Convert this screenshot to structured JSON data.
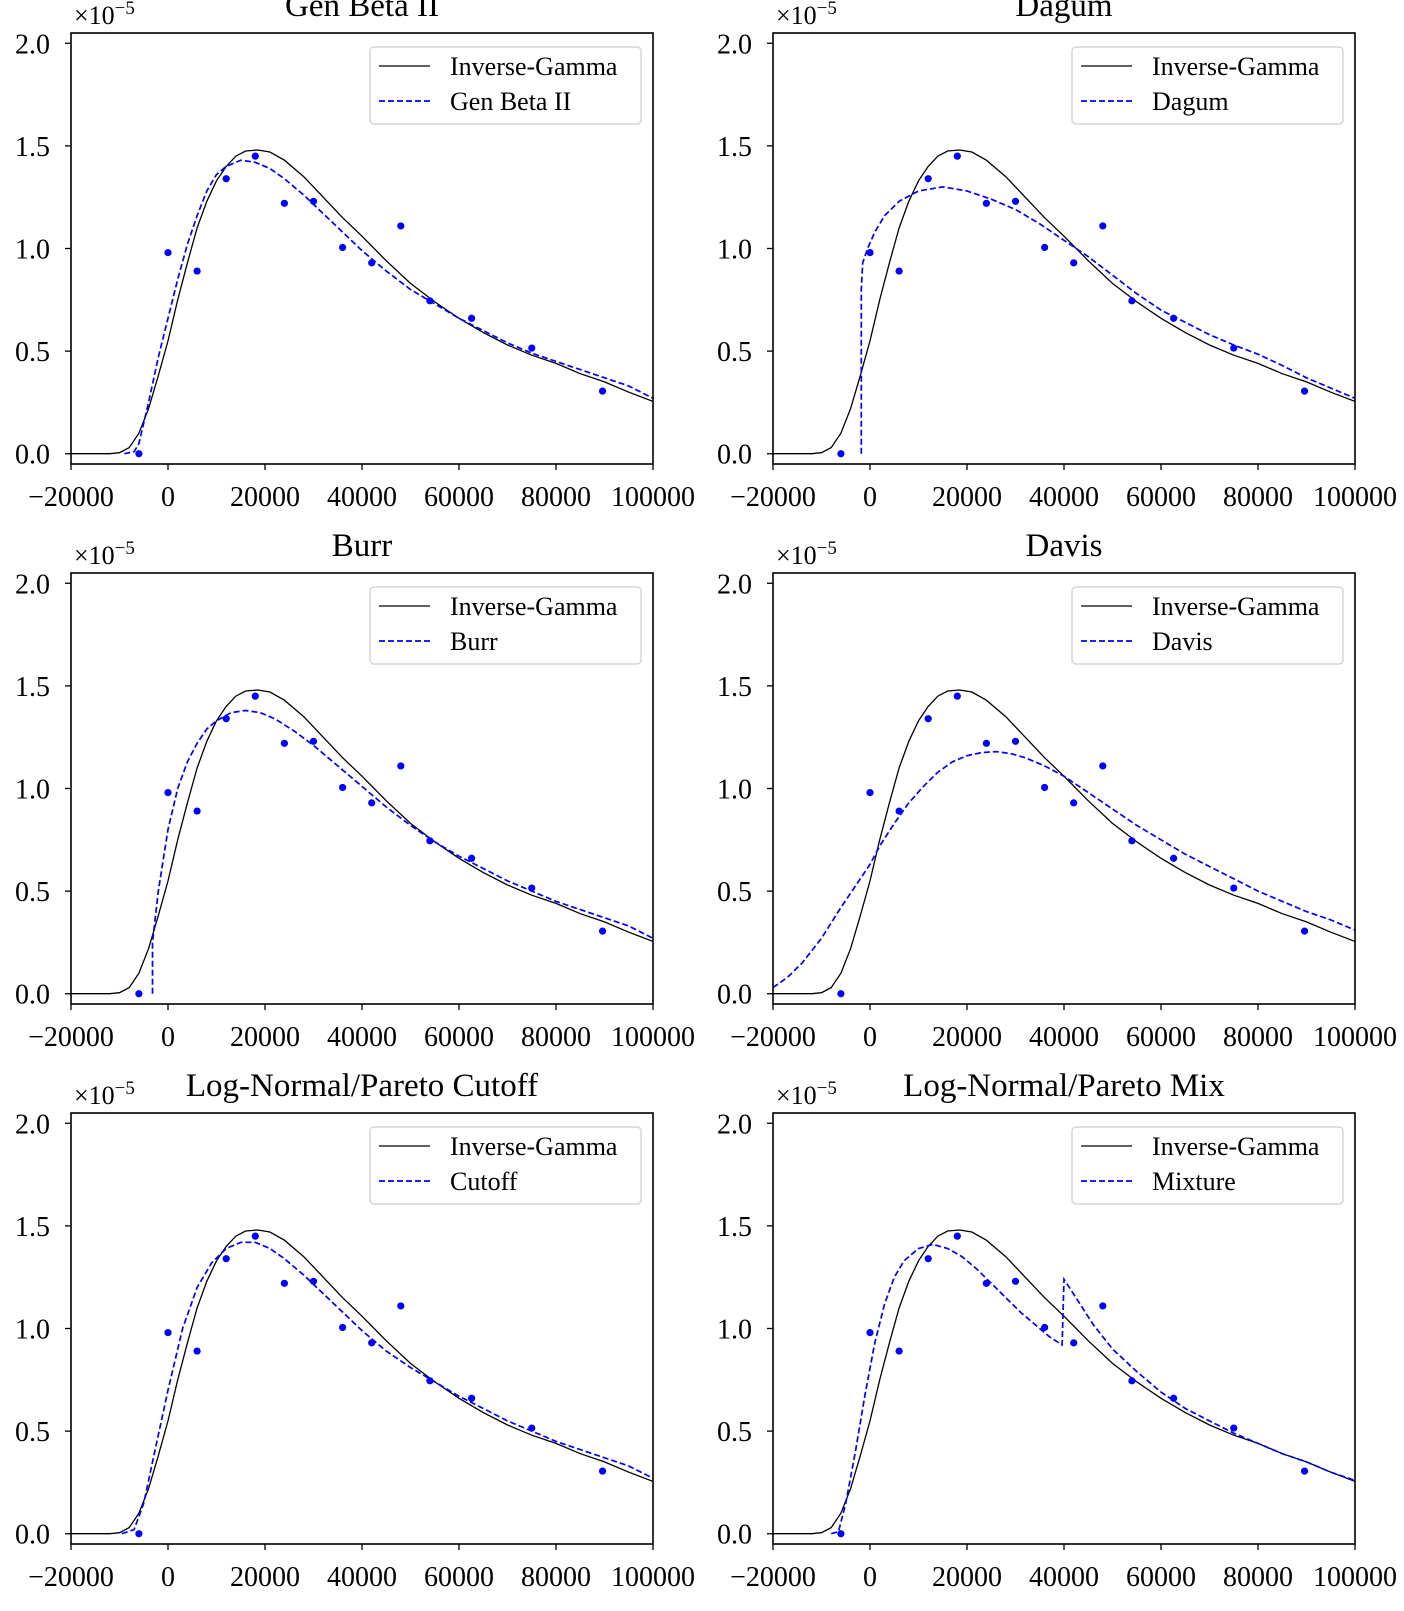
{
  "chart_data": {
    "type": "line",
    "layout": "3 rows x 2 columns",
    "xlim": [
      -20000,
      100000
    ],
    "ylim": [
      -0.05,
      2.05
    ],
    "y_scale_label": "×10",
    "y_scale_exponent": "−5",
    "x_ticks": [
      -20000,
      0,
      20000,
      40000,
      60000,
      80000,
      100000
    ],
    "x_tick_labels": [
      "−20000",
      "0",
      "20000",
      "40000",
      "60000",
      "80000",
      "100000"
    ],
    "y_ticks": [
      0,
      0.5,
      1.0,
      1.5,
      2.0
    ],
    "y_tick_labels": [
      "0.0",
      "0.5",
      "1.0",
      "1.5",
      "2.0"
    ],
    "colors": {
      "reference": "#000000",
      "fit": "#0000ff",
      "points": "#0000ff"
    },
    "legend_placement": "upper right",
    "reference_series": {
      "name": "Inverse-Gamma",
      "points": [
        [
          -20000,
          0
        ],
        [
          -12000,
          0
        ],
        [
          -10000,
          0.005
        ],
        [
          -8000,
          0.03
        ],
        [
          -6000,
          0.1
        ],
        [
          -4000,
          0.22
        ],
        [
          -2000,
          0.38
        ],
        [
          0,
          0.55
        ],
        [
          2000,
          0.75
        ],
        [
          4000,
          0.93
        ],
        [
          6000,
          1.1
        ],
        [
          8000,
          1.23
        ],
        [
          10000,
          1.33
        ],
        [
          12000,
          1.4
        ],
        [
          14000,
          1.45
        ],
        [
          16000,
          1.475
        ],
        [
          18500,
          1.48
        ],
        [
          21000,
          1.47
        ],
        [
          24000,
          1.43
        ],
        [
          28000,
          1.35
        ],
        [
          30000,
          1.3
        ],
        [
          32000,
          1.25
        ],
        [
          36000,
          1.15
        ],
        [
          40000,
          1.06
        ],
        [
          45000,
          0.94
        ],
        [
          50000,
          0.83
        ],
        [
          55000,
          0.74
        ],
        [
          60000,
          0.66
        ],
        [
          65000,
          0.59
        ],
        [
          70000,
          0.53
        ],
        [
          75000,
          0.48
        ],
        [
          80000,
          0.44
        ],
        [
          85000,
          0.39
        ],
        [
          90000,
          0.35
        ],
        [
          95000,
          0.3
        ],
        [
          100000,
          0.255
        ]
      ]
    },
    "scatter": {
      "x": [
        -6000,
        0,
        6000,
        12000,
        18000,
        24000,
        30000,
        36000,
        42000,
        48000,
        54000,
        62600,
        75000,
        89600
      ],
      "y": [
        0.0,
        0.98,
        0.89,
        1.34,
        1.45,
        1.22,
        1.23,
        1.005,
        0.93,
        1.11,
        0.745,
        0.66,
        0.515,
        0.305
      ]
    },
    "panels": [
      {
        "title": "Gen Beta II",
        "legend": [
          "Inverse-Gamma",
          "Gen Beta II"
        ],
        "fit": [
          [
            -9000,
            0
          ],
          [
            -7000,
            0.01
          ],
          [
            -6000,
            0.05
          ],
          [
            -4000,
            0.25
          ],
          [
            -2000,
            0.47
          ],
          [
            0,
            0.66
          ],
          [
            2000,
            0.85
          ],
          [
            4000,
            1.02
          ],
          [
            6000,
            1.16
          ],
          [
            8000,
            1.28
          ],
          [
            10000,
            1.36
          ],
          [
            12000,
            1.4
          ],
          [
            15000,
            1.43
          ],
          [
            18000,
            1.42
          ],
          [
            21000,
            1.39
          ],
          [
            24000,
            1.34
          ],
          [
            28000,
            1.26
          ],
          [
            32000,
            1.17
          ],
          [
            36000,
            1.08
          ],
          [
            40000,
            0.99
          ],
          [
            45000,
            0.89
          ],
          [
            50000,
            0.8
          ],
          [
            55000,
            0.73
          ],
          [
            60000,
            0.66
          ],
          [
            65000,
            0.6
          ],
          [
            70000,
            0.54
          ],
          [
            75000,
            0.49
          ],
          [
            80000,
            0.45
          ],
          [
            85000,
            0.41
          ],
          [
            90000,
            0.37
          ],
          [
            95000,
            0.33
          ],
          [
            100000,
            0.27
          ]
        ]
      },
      {
        "title": "Dagum",
        "legend": [
          "Inverse-Gamma",
          "Dagum"
        ],
        "fit": [
          [
            -1800,
            0
          ],
          [
            -1800,
            0.8
          ],
          [
            -1500,
            0.93
          ],
          [
            -500,
            1.0
          ],
          [
            1000,
            1.08
          ],
          [
            3000,
            1.16
          ],
          [
            6000,
            1.23
          ],
          [
            10000,
            1.28
          ],
          [
            15000,
            1.3
          ],
          [
            20000,
            1.28
          ],
          [
            25000,
            1.24
          ],
          [
            30000,
            1.19
          ],
          [
            35000,
            1.12
          ],
          [
            40000,
            1.04
          ],
          [
            45000,
            0.96
          ],
          [
            50000,
            0.87
          ],
          [
            55000,
            0.78
          ],
          [
            60000,
            0.7
          ],
          [
            65000,
            0.64
          ],
          [
            70000,
            0.58
          ],
          [
            75000,
            0.53
          ],
          [
            80000,
            0.485
          ],
          [
            85000,
            0.43
          ],
          [
            90000,
            0.37
          ],
          [
            95000,
            0.32
          ],
          [
            100000,
            0.27
          ]
        ]
      },
      {
        "title": "Burr",
        "legend": [
          "Inverse-Gamma",
          "Burr"
        ],
        "fit": [
          [
            -3200,
            0
          ],
          [
            -3200,
            0.25
          ],
          [
            -2000,
            0.5
          ],
          [
            0,
            0.8
          ],
          [
            2000,
            1.0
          ],
          [
            4000,
            1.13
          ],
          [
            6000,
            1.22
          ],
          [
            8000,
            1.29
          ],
          [
            10000,
            1.33
          ],
          [
            13000,
            1.37
          ],
          [
            16000,
            1.38
          ],
          [
            19000,
            1.37
          ],
          [
            22000,
            1.34
          ],
          [
            26000,
            1.28
          ],
          [
            30000,
            1.21
          ],
          [
            35000,
            1.11
          ],
          [
            40000,
            1.01
          ],
          [
            45000,
            0.91
          ],
          [
            50000,
            0.82
          ],
          [
            55000,
            0.74
          ],
          [
            60000,
            0.67
          ],
          [
            65000,
            0.61
          ],
          [
            70000,
            0.55
          ],
          [
            75000,
            0.5
          ],
          [
            80000,
            0.45
          ],
          [
            85000,
            0.41
          ],
          [
            90000,
            0.37
          ],
          [
            95000,
            0.33
          ],
          [
            100000,
            0.27
          ]
        ]
      },
      {
        "title": "Davis",
        "legend": [
          "Inverse-Gamma",
          "Davis"
        ],
        "fit": [
          [
            -20000,
            0.03
          ],
          [
            -17000,
            0.08
          ],
          [
            -14000,
            0.15
          ],
          [
            -10000,
            0.27
          ],
          [
            -6000,
            0.42
          ],
          [
            -2000,
            0.56
          ],
          [
            0,
            0.63
          ],
          [
            2000,
            0.72
          ],
          [
            5000,
            0.83
          ],
          [
            8000,
            0.93
          ],
          [
            11000,
            1.01
          ],
          [
            14000,
            1.08
          ],
          [
            17000,
            1.13
          ],
          [
            20000,
            1.16
          ],
          [
            23000,
            1.175
          ],
          [
            26000,
            1.18
          ],
          [
            29000,
            1.17
          ],
          [
            32000,
            1.15
          ],
          [
            36000,
            1.11
          ],
          [
            40000,
            1.06
          ],
          [
            45000,
            0.98
          ],
          [
            50000,
            0.9
          ],
          [
            55000,
            0.82
          ],
          [
            60000,
            0.75
          ],
          [
            65000,
            0.68
          ],
          [
            70000,
            0.62
          ],
          [
            75000,
            0.56
          ],
          [
            80000,
            0.5
          ],
          [
            85000,
            0.45
          ],
          [
            90000,
            0.4
          ],
          [
            95000,
            0.36
          ],
          [
            100000,
            0.31
          ]
        ]
      },
      {
        "title": "Log-Normal/Pareto Cutoff",
        "legend": [
          "Inverse-Gamma",
          "Cutoff"
        ],
        "fit": [
          [
            -9500,
            0
          ],
          [
            -7000,
            0.02
          ],
          [
            -5000,
            0.15
          ],
          [
            -3000,
            0.37
          ],
          [
            0,
            0.7
          ],
          [
            3000,
            1.0
          ],
          [
            6000,
            1.2
          ],
          [
            9000,
            1.32
          ],
          [
            12000,
            1.39
          ],
          [
            15000,
            1.42
          ],
          [
            18000,
            1.42
          ],
          [
            21000,
            1.39
          ],
          [
            24000,
            1.34
          ],
          [
            28000,
            1.26
          ],
          [
            32000,
            1.17
          ],
          [
            36000,
            1.08
          ],
          [
            40000,
            0.99
          ],
          [
            45000,
            0.89
          ],
          [
            50000,
            0.81
          ],
          [
            55000,
            0.74
          ],
          [
            60000,
            0.67
          ],
          [
            65000,
            0.61
          ],
          [
            70000,
            0.55
          ],
          [
            75000,
            0.5
          ],
          [
            80000,
            0.45
          ],
          [
            85000,
            0.41
          ],
          [
            90000,
            0.37
          ],
          [
            95000,
            0.33
          ],
          [
            100000,
            0.27
          ]
        ]
      },
      {
        "title": "Log-Normal/Pareto Mix",
        "legend": [
          "Inverse-Gamma",
          "Mixture"
        ],
        "fit": [
          [
            -8000,
            0
          ],
          [
            -6500,
            0.01
          ],
          [
            -5000,
            0.15
          ],
          [
            -3000,
            0.4
          ],
          [
            -1000,
            0.68
          ],
          [
            1000,
            0.93
          ],
          [
            3000,
            1.12
          ],
          [
            5000,
            1.25
          ],
          [
            7000,
            1.33
          ],
          [
            10000,
            1.39
          ],
          [
            13000,
            1.41
          ],
          [
            16000,
            1.39
          ],
          [
            19000,
            1.35
          ],
          [
            22000,
            1.29
          ],
          [
            25000,
            1.22
          ],
          [
            28000,
            1.15
          ],
          [
            31000,
            1.08
          ],
          [
            34000,
            1.02
          ],
          [
            37000,
            0.96
          ],
          [
            39600,
            0.92
          ],
          [
            40000,
            1.24
          ],
          [
            43000,
            1.13
          ],
          [
            46000,
            1.02
          ],
          [
            50000,
            0.9
          ],
          [
            55000,
            0.79
          ],
          [
            60000,
            0.69
          ],
          [
            65000,
            0.61
          ],
          [
            70000,
            0.55
          ],
          [
            75000,
            0.49
          ],
          [
            80000,
            0.44
          ],
          [
            85000,
            0.39
          ],
          [
            90000,
            0.35
          ],
          [
            95000,
            0.3
          ],
          [
            100000,
            0.26
          ]
        ]
      }
    ]
  }
}
